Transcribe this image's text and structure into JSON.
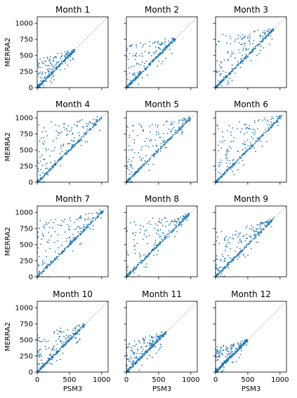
{
  "chart_data": {
    "type": "scatter",
    "layout": {
      "rows": 4,
      "cols": 3
    },
    "xlabel": "PSM3",
    "ylabel": "MERRA2",
    "xlim": [
      0,
      1100
    ],
    "ylim": [
      0,
      1100
    ],
    "xticks": [
      0,
      500,
      1000
    ],
    "yticks": [
      0,
      250,
      500,
      750,
      1000
    ],
    "reference_line": "y = x (dotted, light gray)",
    "point_color": "#1f77b4",
    "panels": [
      {
        "title": "Month 1",
        "max": 580,
        "spread": 0.85
      },
      {
        "title": "Month 2",
        "max": 760,
        "spread": 0.95
      },
      {
        "title": "Month 3",
        "max": 900,
        "spread": 1.0
      },
      {
        "title": "Month 4",
        "max": 1000,
        "spread": 1.0
      },
      {
        "title": "Month 5",
        "max": 1000,
        "spread": 1.0
      },
      {
        "title": "Month 6",
        "max": 1030,
        "spread": 0.95
      },
      {
        "title": "Month 7",
        "max": 1020,
        "spread": 0.95
      },
      {
        "title": "Month 8",
        "max": 980,
        "spread": 0.95
      },
      {
        "title": "Month 9",
        "max": 900,
        "spread": 0.85
      },
      {
        "title": "Month 10",
        "max": 740,
        "spread": 0.9
      },
      {
        "title": "Month 11",
        "max": 620,
        "spread": 0.85
      },
      {
        "title": "Month 12",
        "max": 500,
        "spread": 0.8
      }
    ]
  }
}
